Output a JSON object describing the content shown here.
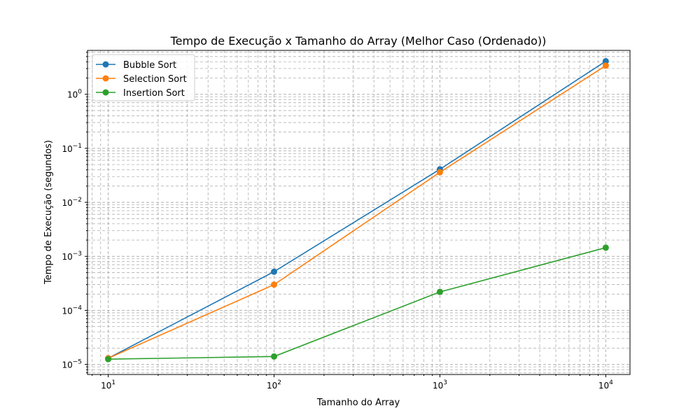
{
  "chart_data": {
    "type": "line",
    "title": "Tempo de Execução x Tamanho do Array (Melhor Caso (Ordenado))",
    "xlabel": "Tamanho do Array",
    "ylabel": "Tempo de Execução (segundos)",
    "xscale": "log",
    "yscale": "log",
    "xlim": [
      7.5,
      14000
    ],
    "ylim": [
      6.5e-06,
      6.5
    ],
    "x": [
      10,
      100,
      1000,
      10000
    ],
    "x_tick_labels": [
      {
        "base": "10",
        "exp": "1",
        "value": 10
      },
      {
        "base": "10",
        "exp": "2",
        "value": 100
      },
      {
        "base": "10",
        "exp": "3",
        "value": 1000
      },
      {
        "base": "10",
        "exp": "4",
        "value": 10000
      }
    ],
    "y_tick_labels": [
      {
        "base": "10",
        "exp": "−5",
        "value": 1e-05
      },
      {
        "base": "10",
        "exp": "−4",
        "value": 0.0001
      },
      {
        "base": "10",
        "exp": "−3",
        "value": 0.001
      },
      {
        "base": "10",
        "exp": "−2",
        "value": 0.01
      },
      {
        "base": "10",
        "exp": "−1",
        "value": 0.1
      },
      {
        "base": "10",
        "exp": "0",
        "value": 1
      }
    ],
    "grid": true,
    "legend_position": "top-left",
    "series": [
      {
        "name": "Bubble Sort",
        "color": "#1f77b4",
        "values": [
          1.3e-05,
          0.00052,
          0.041,
          4.1
        ]
      },
      {
        "name": "Selection Sort",
        "color": "#ff7f0e",
        "values": [
          1.3e-05,
          0.0003,
          0.036,
          3.4
        ]
      },
      {
        "name": "Insertion Sort",
        "color": "#2ca02c",
        "values": [
          1.25e-05,
          1.4e-05,
          0.00022,
          0.00145
        ]
      }
    ]
  }
}
